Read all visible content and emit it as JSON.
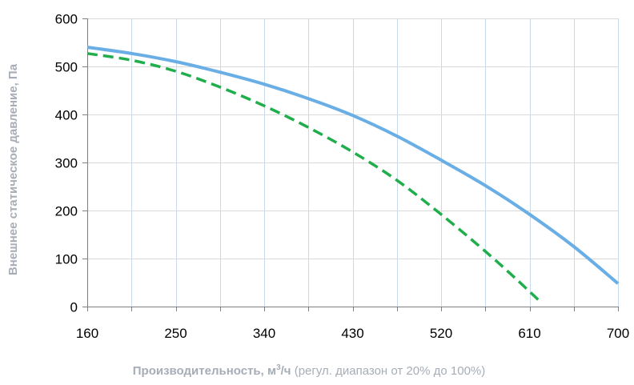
{
  "chart_data": {
    "type": "line",
    "title": "",
    "ylabel": "Внешнее статическое давление, Па",
    "xlabel": {
      "main": "Производительность, м",
      "superscript": "3",
      "unit": "/ч",
      "note": " (регул. диапазон от 20% до 100%)"
    },
    "xlim": [
      160,
      700
    ],
    "ylim": [
      0,
      600
    ],
    "x_ticks": [
      160,
      250,
      340,
      430,
      520,
      610,
      700
    ],
    "x_minor_grid_step": 45,
    "y_ticks": [
      0,
      100,
      200,
      300,
      400,
      500,
      600
    ],
    "grid": true,
    "legend": "none",
    "series": [
      {
        "style": "solid",
        "color": "#6aaee6",
        "x": [
          160,
          205,
          250,
          295,
          340,
          385,
          430,
          475,
          520,
          565,
          610,
          655,
          700
        ],
        "y": [
          540,
          527,
          510,
          488,
          463,
          433,
          398,
          355,
          305,
          252,
          192,
          125,
          48
        ]
      },
      {
        "style": "dashed",
        "color": "#1fae4b",
        "x": [
          160,
          205,
          250,
          295,
          340,
          385,
          430,
          475,
          520,
          565,
          595,
          620
        ],
        "y": [
          527,
          513,
          490,
          457,
          418,
          373,
          322,
          263,
          192,
          115,
          60,
          12
        ]
      }
    ]
  }
}
